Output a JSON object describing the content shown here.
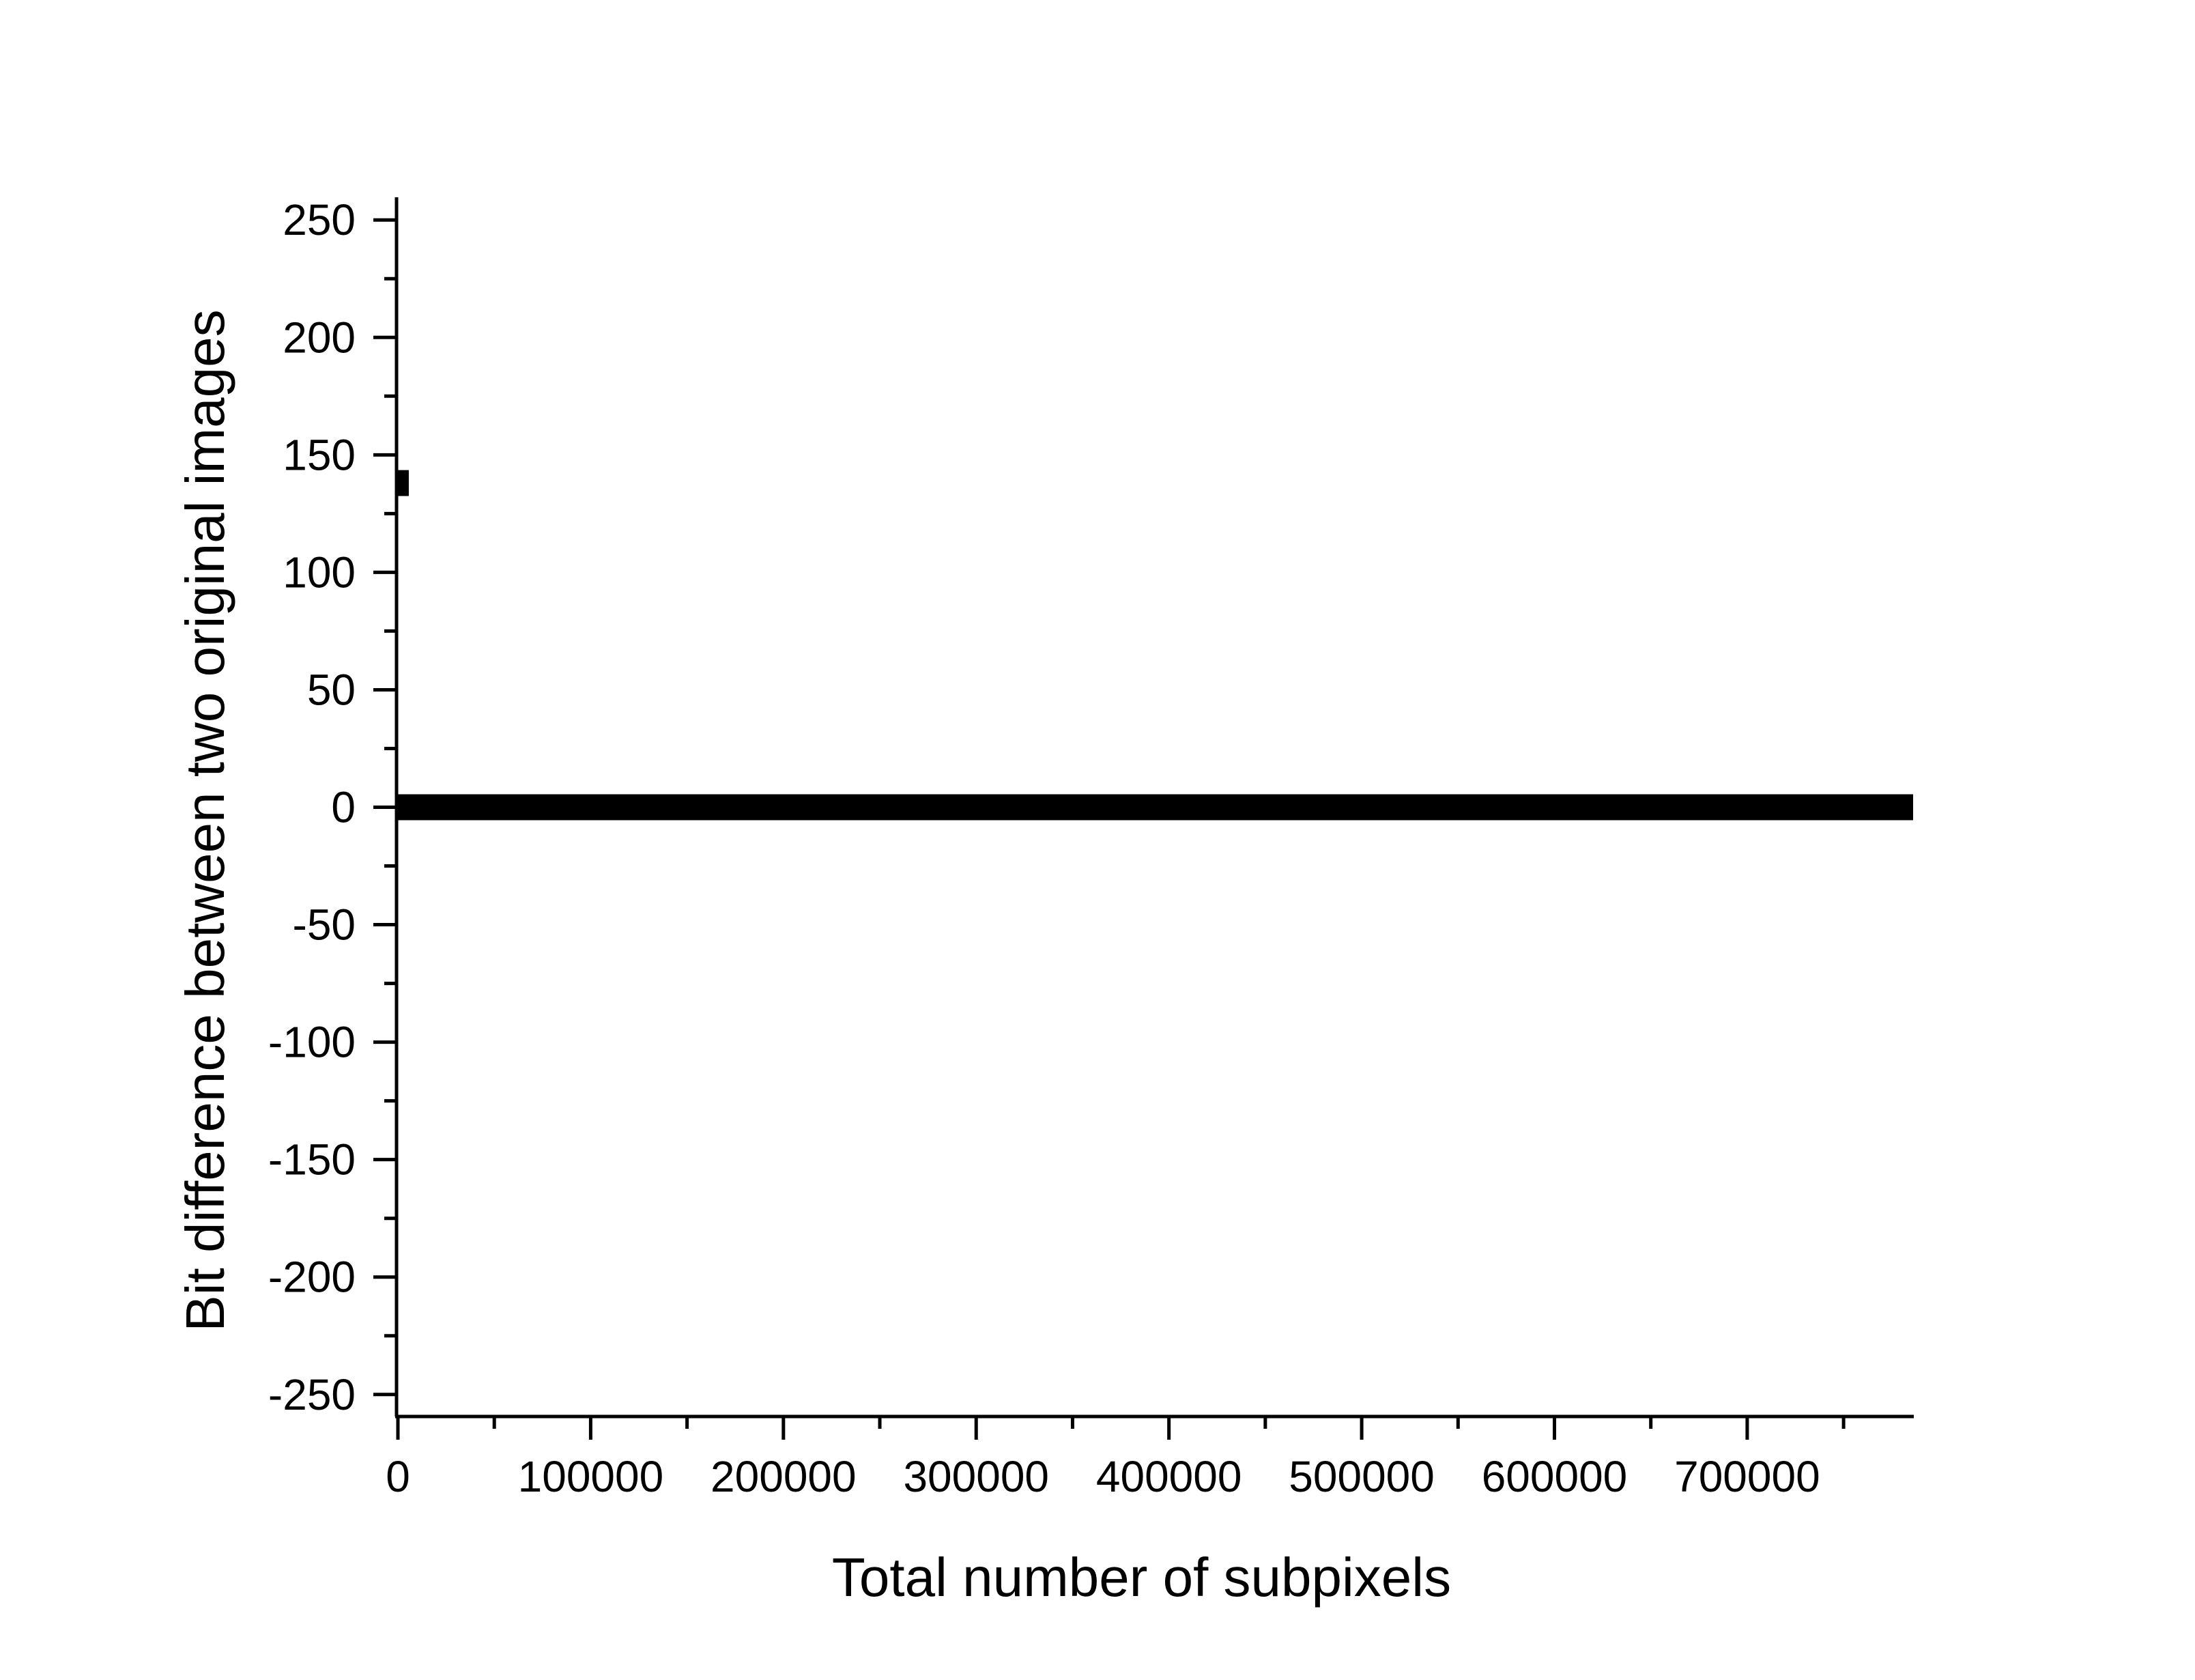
{
  "chart_data": {
    "type": "scatter",
    "title": "",
    "xlabel": "Total number of subpixels",
    "ylabel": "Bit difference between two original images",
    "xlim": [
      0,
      786432
    ],
    "ylim": [
      -255,
      255
    ],
    "x_ticks": [
      0,
      100000,
      200000,
      300000,
      400000,
      500000,
      600000,
      700000
    ],
    "x_tick_labels": [
      "0",
      "100000",
      "200000",
      "300000",
      "400000",
      "500000",
      "600000",
      "700000"
    ],
    "y_ticks": [
      250,
      200,
      150,
      100,
      50,
      0,
      -50,
      -100,
      -150,
      -200,
      -250
    ],
    "y_tick_labels": [
      "250",
      "200",
      "150",
      "100",
      "50",
      "0",
      "-50",
      "-100",
      "-150",
      "-200",
      "-250"
    ],
    "grid": false,
    "legend": "none",
    "marker_color": "#000000",
    "series": [
      {
        "segments": [
          {
            "x": [
              0,
              786432
            ],
            "y": [
              0,
              0
            ]
          },
          {
            "x": [
              0,
              6000
            ],
            "y": [
              138,
              138
            ]
          }
        ]
      }
    ]
  }
}
